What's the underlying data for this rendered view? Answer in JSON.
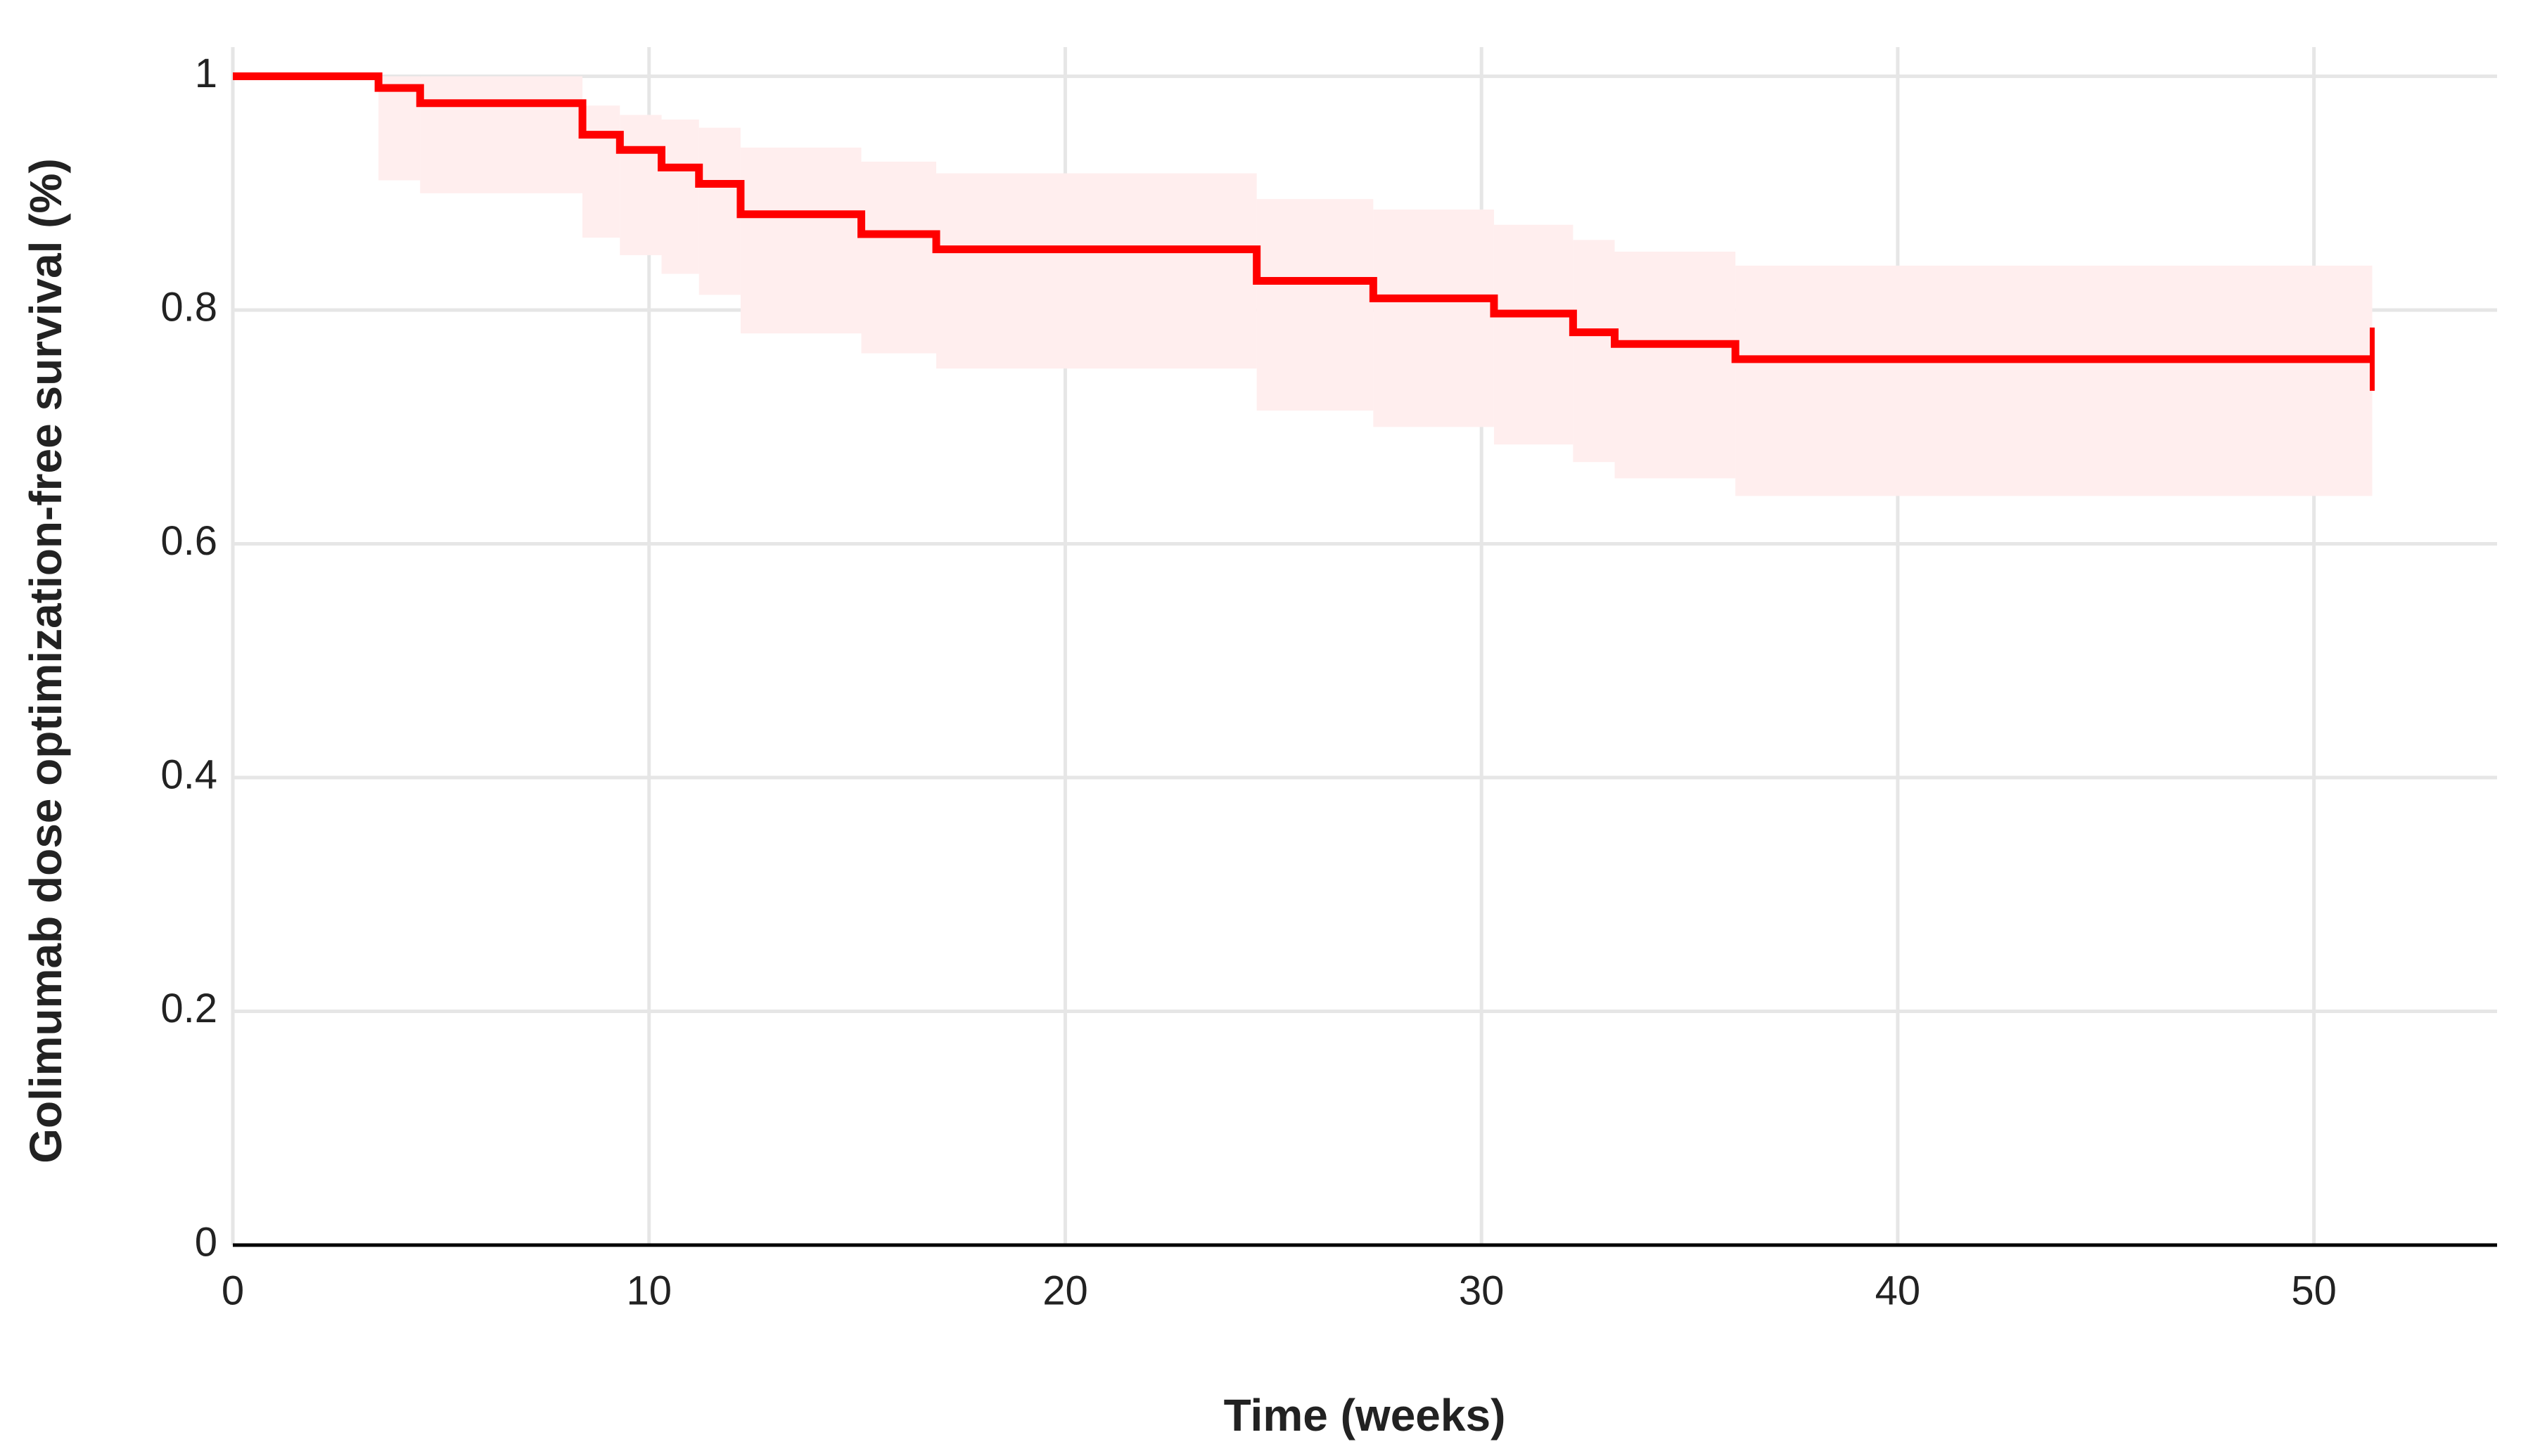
{
  "chart_data": {
    "type": "step",
    "xlabel": "Time (weeks)",
    "ylabel": "Golimumab dose optimization-free survival (%)",
    "x": [
      0,
      3.5,
      4.5,
      8.4,
      9.3,
      10.3,
      11.2,
      12.2,
      15.1,
      16.9,
      24.6,
      27.4,
      30.3,
      32.2,
      33.2,
      36.1
    ],
    "series": [
      {
        "color": "#ff0000",
        "values": [
          1.0,
          0.99,
          0.977,
          0.95,
          0.937,
          0.922,
          0.908,
          0.882,
          0.865,
          0.852,
          0.825,
          0.81,
          0.797,
          0.781,
          0.771,
          0.758
        ],
        "lower": [
          1.0,
          0.911,
          0.9,
          0.862,
          0.847,
          0.831,
          0.813,
          0.78,
          0.763,
          0.75,
          0.714,
          0.7,
          0.685,
          0.67,
          0.656,
          0.641
        ],
        "upper": [
          1.0,
          1.0,
          1.0,
          0.975,
          0.967,
          0.963,
          0.956,
          0.939,
          0.927,
          0.917,
          0.895,
          0.886,
          0.873,
          0.86,
          0.85,
          0.838
        ],
        "band_color": "#ffeeee"
      }
    ],
    "censored": {
      "x": [
        51.4
      ],
      "values": [
        0.758
      ]
    },
    "xlim": [
      0,
      54.4
    ],
    "ylim": [
      0,
      1.025
    ],
    "xticks": [
      0,
      10,
      20,
      30,
      40,
      50
    ],
    "yticks": [
      0,
      0.2,
      0.4,
      0.6,
      0.8,
      1
    ],
    "grid": true
  }
}
